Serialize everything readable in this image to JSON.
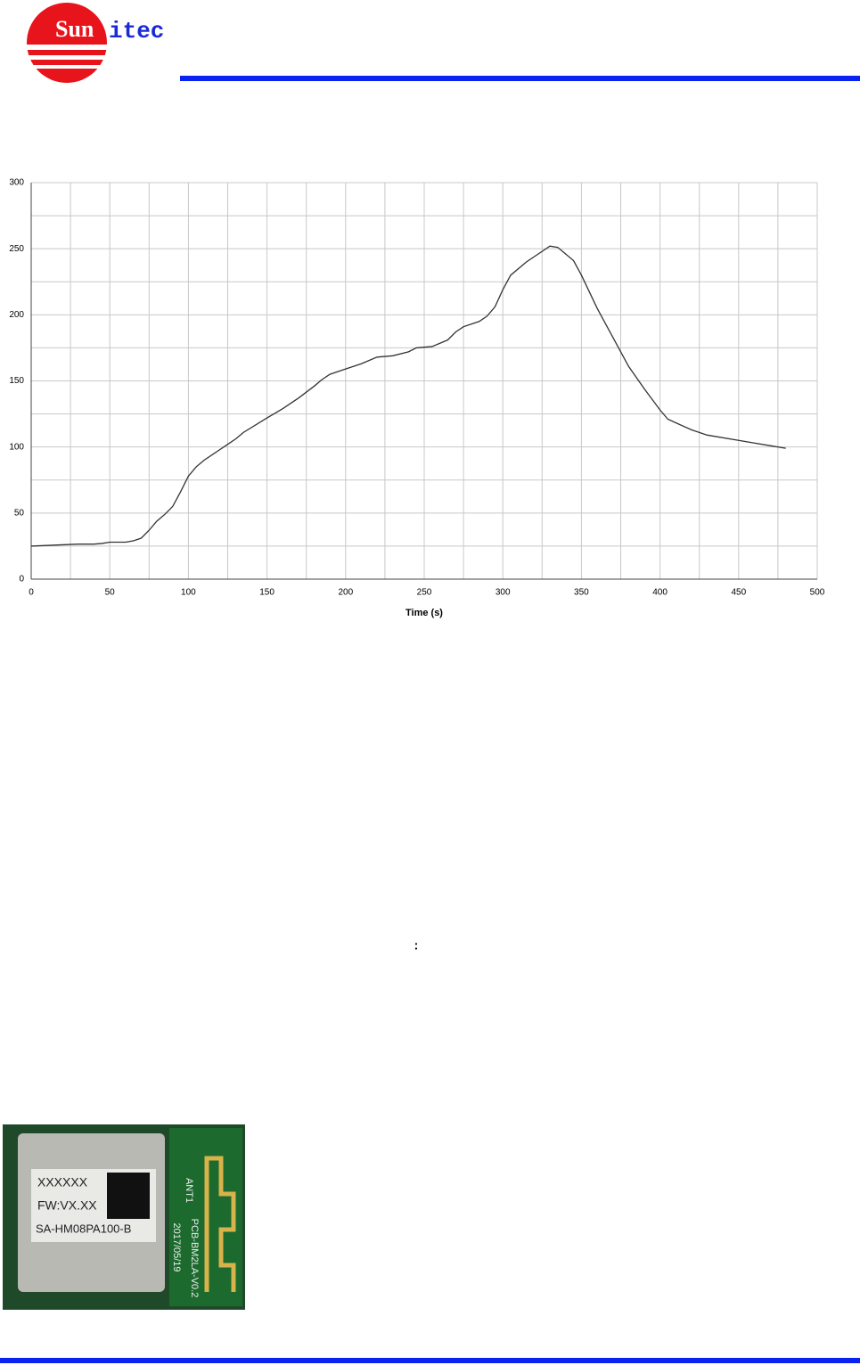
{
  "header": {
    "logo_sun": "Sun",
    "logo_itec": "itec"
  },
  "chart_data": {
    "type": "line",
    "x_label": "Time (s)",
    "x": [
      0,
      10,
      20,
      30,
      40,
      45,
      50,
      60,
      65,
      70,
      75,
      80,
      85,
      90,
      95,
      100,
      105,
      110,
      120,
      130,
      135,
      150,
      160,
      170,
      180,
      185,
      190,
      200,
      210,
      220,
      230,
      240,
      245,
      255,
      265,
      270,
      275,
      285,
      290,
      295,
      300,
      305,
      315,
      325,
      330,
      335,
      345,
      350,
      360,
      370,
      380,
      390,
      400,
      405,
      420,
      430,
      450,
      460,
      470,
      480
    ],
    "series": [
      {
        "color": "#333333",
        "values": [
          25,
          25.5,
          26,
          26.5,
          26.5,
          27,
          28,
          28,
          29,
          31,
          37,
          44,
          49,
          55,
          66,
          78,
          85,
          90,
          98,
          106,
          111,
          122,
          129,
          137,
          146,
          151,
          155,
          159,
          163,
          168,
          169,
          172,
          175,
          176,
          181,
          187,
          191,
          195,
          199,
          206,
          219,
          230,
          240,
          248,
          252,
          251,
          241,
          230,
          205,
          183,
          161,
          144,
          128,
          121,
          113,
          109,
          105,
          103,
          101,
          99
        ]
      }
    ],
    "xlim": [
      0,
      500
    ],
    "xticks": [
      0,
      50,
      100,
      150,
      200,
      250,
      300,
      350,
      400,
      450,
      500
    ],
    "ylim": [
      0,
      300
    ],
    "yticks": [
      0,
      50,
      100,
      150,
      200,
      250,
      300
    ],
    "grid": true
  },
  "colon": ":",
  "photo": {
    "label_line1": "XXXXXX",
    "label_line2": "FW:VX.XX",
    "label_line3": "SA-HM08PA100-B",
    "antenna": "ANT1",
    "pcb": "PCB-BM2LA-V0.2",
    "date": "2017/05/19"
  }
}
